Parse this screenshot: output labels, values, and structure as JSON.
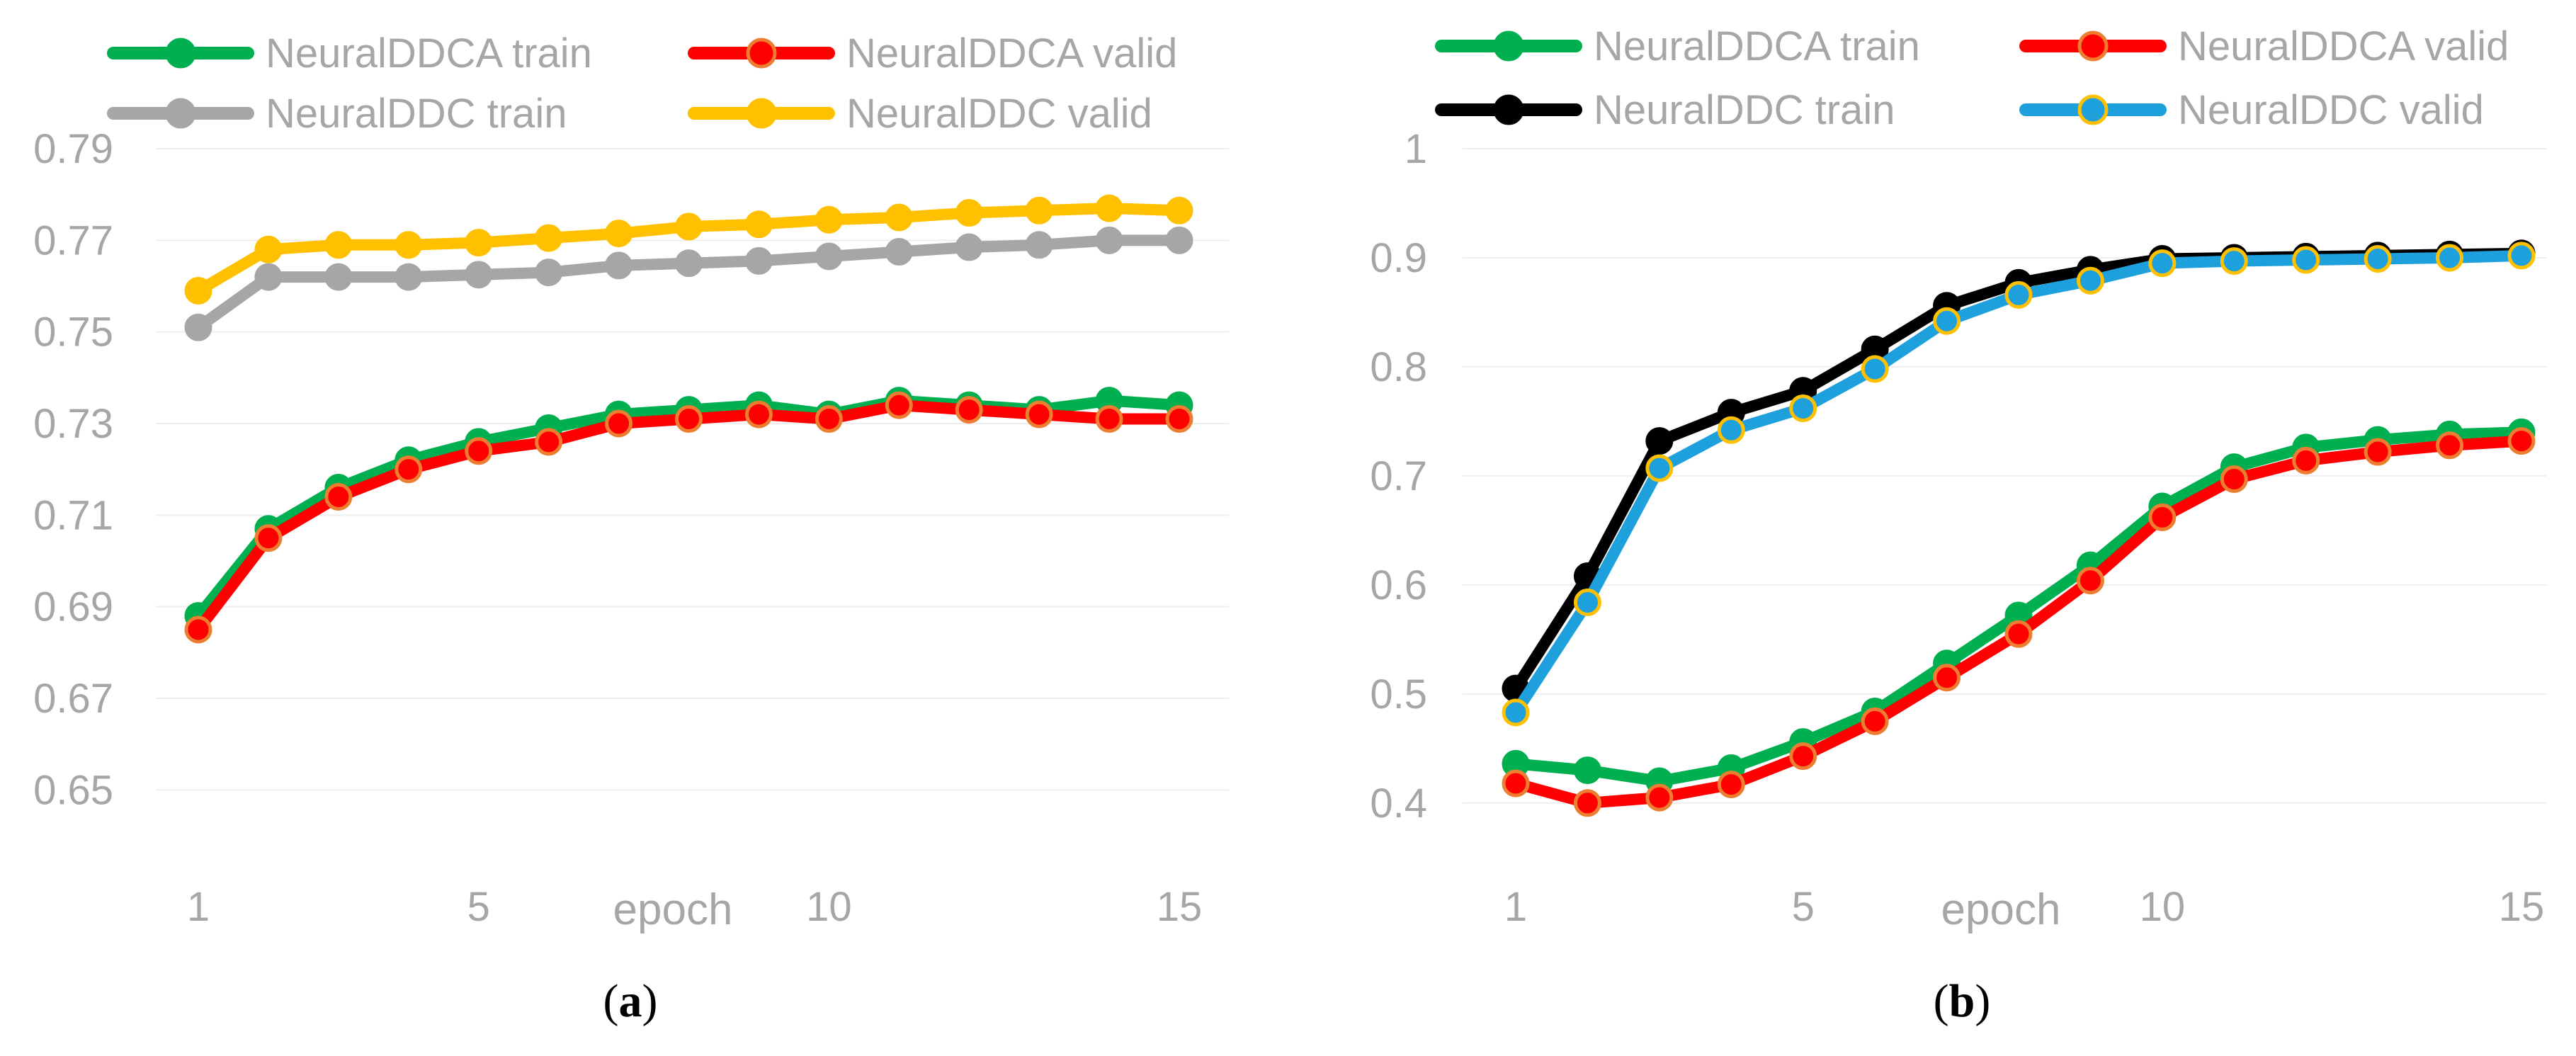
{
  "chart_data": [
    {
      "id": "a",
      "type": "line",
      "caption_letter": "a",
      "xlabel": "epoch",
      "ylabel": "",
      "x": [
        1,
        2,
        3,
        4,
        5,
        6,
        7,
        8,
        9,
        10,
        11,
        12,
        13,
        14,
        15
      ],
      "xticks": [
        1,
        5,
        10,
        15
      ],
      "ylim": [
        0.64,
        0.79
      ],
      "yticks": [
        "0.65",
        "0.67",
        "0.69",
        "0.71",
        "0.73",
        "0.75",
        "0.77",
        "0.79"
      ],
      "grid": true,
      "legend_position": "top",
      "series": [
        {
          "name": "NeuralDDCA train",
          "color": "#00b050",
          "marker_fill": "#00b050",
          "marker_edge": "#00b050",
          "values": [
            0.688,
            0.707,
            0.716,
            0.722,
            0.726,
            0.729,
            0.732,
            0.733,
            0.734,
            0.732,
            0.735,
            0.734,
            0.733,
            0.735,
            0.734
          ]
        },
        {
          "name": "NeuralDDCA valid",
          "color": "#ff0000",
          "marker_fill": "#ff0000",
          "marker_edge": "#ed7d31",
          "values": [
            0.685,
            0.705,
            0.714,
            0.72,
            0.724,
            0.726,
            0.73,
            0.731,
            0.732,
            0.731,
            0.734,
            0.733,
            0.732,
            0.731,
            0.731
          ]
        },
        {
          "name": "NeuralDDC train",
          "color": "#a6a6a6",
          "marker_fill": "#a6a6a6",
          "marker_edge": "#a6a6a6",
          "values": [
            0.751,
            0.762,
            0.762,
            0.762,
            0.7625,
            0.763,
            0.7645,
            0.765,
            0.7655,
            0.7665,
            0.7675,
            0.7685,
            0.769,
            0.77,
            0.77
          ]
        },
        {
          "name": "NeuralDDC valid",
          "color": "#ffc000",
          "marker_fill": "#ffc000",
          "marker_edge": "#ffc000",
          "values": [
            0.759,
            0.768,
            0.769,
            0.769,
            0.7695,
            0.7705,
            0.7715,
            0.773,
            0.7735,
            0.7745,
            0.775,
            0.776,
            0.7765,
            0.777,
            0.7765
          ]
        }
      ]
    },
    {
      "id": "b",
      "type": "line",
      "caption_letter": "b",
      "xlabel": "epoch",
      "ylabel": "",
      "x": [
        1,
        2,
        3,
        4,
        5,
        6,
        7,
        8,
        9,
        10,
        11,
        12,
        13,
        14,
        15
      ],
      "xticks": [
        1,
        5,
        10,
        15
      ],
      "ylim": [
        0.37,
        1.0
      ],
      "yticks": [
        "0.4",
        "0.5",
        "0.6",
        "0.7",
        "0.8",
        "0.9",
        "1"
      ],
      "grid": true,
      "legend_position": "top",
      "series": [
        {
          "name": "NeuralDDCA train",
          "color": "#00b050",
          "marker_fill": "#00b050",
          "marker_edge": "#00b050",
          "values": [
            0.436,
            0.43,
            0.42,
            0.432,
            0.456,
            0.484,
            0.528,
            0.572,
            0.618,
            0.672,
            0.708,
            0.726,
            0.733,
            0.738,
            0.74
          ]
        },
        {
          "name": "NeuralDDCA valid",
          "color": "#ff0000",
          "marker_fill": "#ff0000",
          "marker_edge": "#ed7d31",
          "values": [
            0.418,
            0.4,
            0.405,
            0.417,
            0.443,
            0.475,
            0.515,
            0.555,
            0.604,
            0.662,
            0.697,
            0.714,
            0.722,
            0.728,
            0.732
          ]
        },
        {
          "name": "NeuralDDC train",
          "color": "#000000",
          "marker_fill": "#000000",
          "marker_edge": "#000000",
          "values": [
            0.505,
            0.608,
            0.732,
            0.758,
            0.778,
            0.816,
            0.856,
            0.877,
            0.889,
            0.899,
            0.9,
            0.901,
            0.902,
            0.903,
            0.904
          ]
        },
        {
          "name": "NeuralDDC valid",
          "color": "#1ea0dc",
          "marker_fill": "#1ea0dc",
          "marker_edge": "#ffc000",
          "values": [
            0.483,
            0.584,
            0.707,
            0.742,
            0.762,
            0.798,
            0.842,
            0.866,
            0.879,
            0.895,
            0.897,
            0.898,
            0.899,
            0.9,
            0.902
          ]
        }
      ]
    }
  ]
}
